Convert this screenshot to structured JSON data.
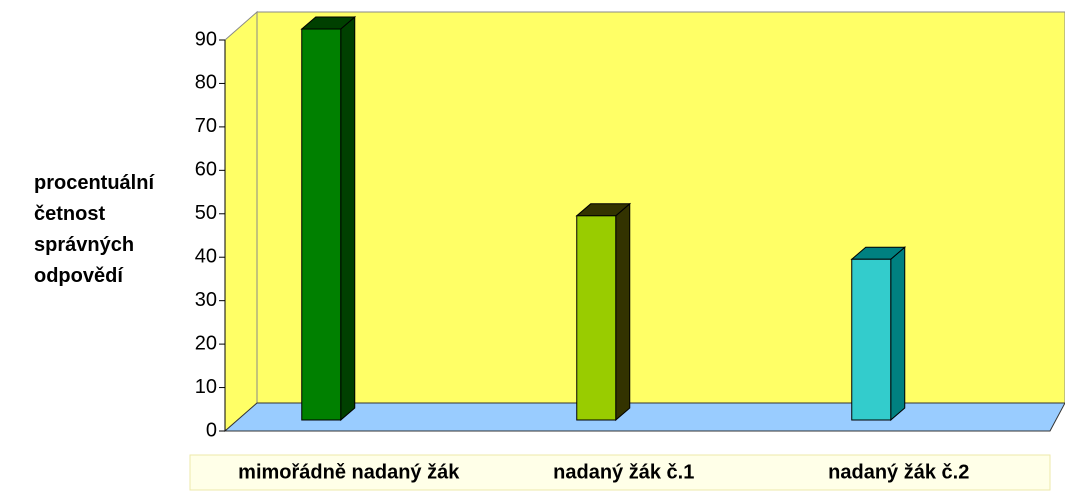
{
  "chart_data": {
    "type": "bar3d",
    "y_label": "procentuální četnost správných odpovědí",
    "categories": [
      "mimořádně nadaný žák",
      "nadaný žák č.1",
      "nadaný žák č.2"
    ],
    "values": [
      90,
      47,
      37
    ],
    "colors": [
      "#008000",
      "#99cc00",
      "#33cccc"
    ],
    "side_colors": [
      "#004000",
      "#333300",
      "#008080"
    ],
    "ylim": [
      0,
      90
    ],
    "yticks": [
      0,
      10,
      20,
      30,
      40,
      50,
      60,
      70,
      80,
      90
    ],
    "wall_color": "#ffff66",
    "floor_color": "#99ccff",
    "grid": false
  }
}
